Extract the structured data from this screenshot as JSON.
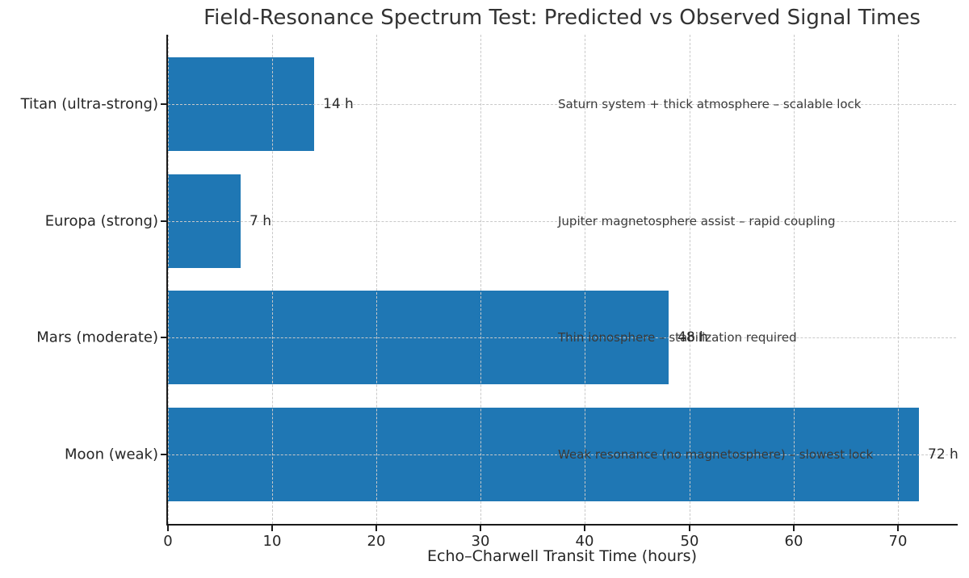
{
  "chart_data": {
    "type": "bar",
    "orientation": "horizontal",
    "title": "Field-Resonance Spectrum Test: Predicted vs Observed Signal Times",
    "xlabel": "Echo–Charwell Transit Time (hours)",
    "categories": [
      "Titan (ultra-strong)",
      "Europa (strong)",
      "Mars (moderate)",
      "Moon (weak)"
    ],
    "values": [
      14,
      7,
      48,
      72
    ],
    "value_labels": [
      "14 h",
      "7 h",
      "48 h",
      "72 h"
    ],
    "annotations": [
      "Saturn system + thick atmosphere – scalable lock",
      "Jupiter magnetosphere assist – rapid coupling",
      "Thin ionosphere – stabilization required",
      "Weak resonance (no magnetosphere) – slowest lock"
    ],
    "x_ticks": [
      0,
      10,
      20,
      30,
      40,
      50,
      60,
      70
    ],
    "xlim": [
      0,
      75.6
    ],
    "bar_color": "#1f77b4",
    "grid": "dashed",
    "grid_color": "#c9c9c9",
    "legend": "none"
  }
}
